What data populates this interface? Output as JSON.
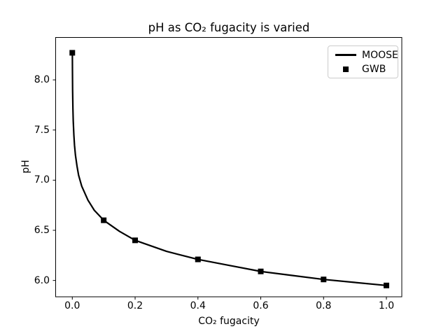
{
  "figure": {
    "background_color": "#ffffff",
    "foreground_color": "#000000"
  },
  "chart_data": {
    "type": "line",
    "title": "pH as CO₂ fugacity is varied",
    "xlabel": "CO₂ fugacity",
    "ylabel": "pH",
    "xlim": [
      -0.053,
      1.049
    ],
    "ylim": [
      5.837,
      8.423
    ],
    "grid": false,
    "axis_color": "#000000",
    "x_axis": {
      "ticks": [
        0.0,
        0.2,
        0.4,
        0.6,
        0.8,
        1.0
      ],
      "labels": [
        "0.0",
        "0.2",
        "0.4",
        "0.6",
        "0.8",
        "1.0"
      ]
    },
    "y_axis": {
      "ticks": [
        6.0,
        6.5,
        7.0,
        7.5,
        8.0
      ],
      "labels": [
        "6.0",
        "6.5",
        "7.0",
        "7.5",
        "8.0"
      ]
    },
    "legend": {
      "position": "upper right",
      "border_color": "#cccccc",
      "entries": [
        {
          "label": "MOOSE",
          "handle": "line",
          "color": "#000000"
        },
        {
          "label": "GWB",
          "handle": "square-marker",
          "color": "#000000"
        }
      ]
    },
    "series": [
      {
        "name": "MOOSE",
        "type": "line",
        "color": "#000000",
        "linewidth": 2.2,
        "x": [
          0.0002,
          0.0005,
          0.001,
          0.002,
          0.003,
          0.005,
          0.007,
          0.01,
          0.015,
          0.02,
          0.03,
          0.05,
          0.07,
          0.1,
          0.15,
          0.2,
          0.3,
          0.4,
          0.5,
          0.6,
          0.7,
          0.8,
          0.9,
          1.0
        ],
        "y": [
          8.27,
          8.1,
          7.9,
          7.71,
          7.59,
          7.45,
          7.35,
          7.25,
          7.14,
          7.05,
          6.94,
          6.8,
          6.7,
          6.6,
          6.49,
          6.4,
          6.29,
          6.21,
          6.15,
          6.09,
          6.05,
          6.01,
          5.98,
          5.95
        ]
      },
      {
        "name": "GWB",
        "type": "scatter",
        "marker": "square",
        "color": "#000000",
        "markersize": 8,
        "x": [
          0.0,
          0.1,
          0.2,
          0.4,
          0.6,
          0.8,
          1.0
        ],
        "y": [
          8.27,
          6.6,
          6.4,
          6.21,
          6.09,
          6.01,
          5.95
        ]
      }
    ]
  }
}
